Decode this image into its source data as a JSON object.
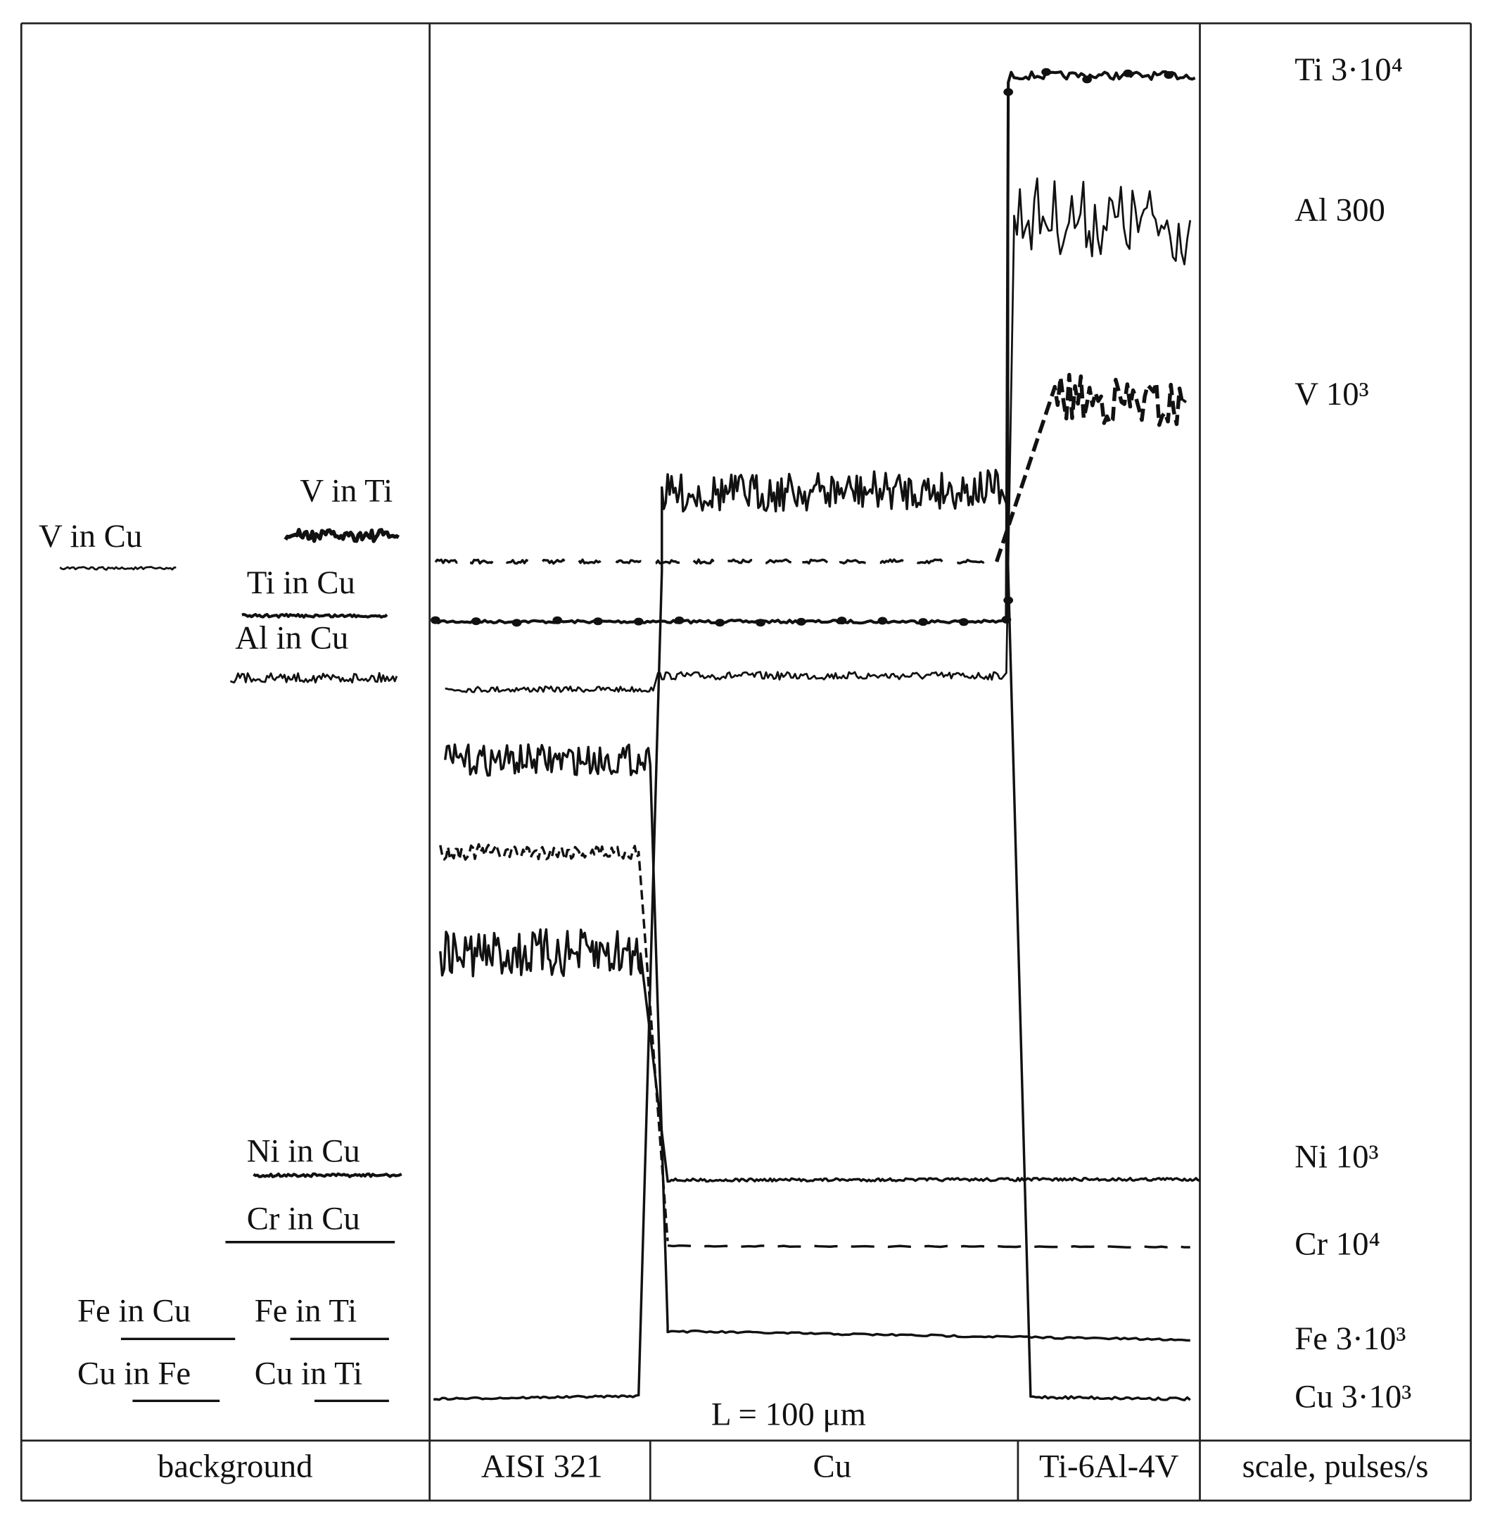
{
  "scale_labels": [
    "Ti 3·10⁴",
    "Al 300",
    "V 10³",
    "Ni 10³",
    "Cr 10⁴",
    "Fe 3·10³",
    "Cu 3·10³"
  ],
  "background_labels": [
    "V in Cu",
    "V in Ti",
    "Ti in Cu",
    "Al in Cu",
    "Ni in Cu",
    "Cr in Cu",
    "Fe in Cu",
    "Fe in Ti",
    "Cu in Fe",
    "Cu in Ti"
  ],
  "length_label": "L = 100 μm",
  "columns": [
    "background",
    "AISI 321",
    "Cu",
    "Ti-6Al-4V",
    "scale, pulses/s"
  ]
}
